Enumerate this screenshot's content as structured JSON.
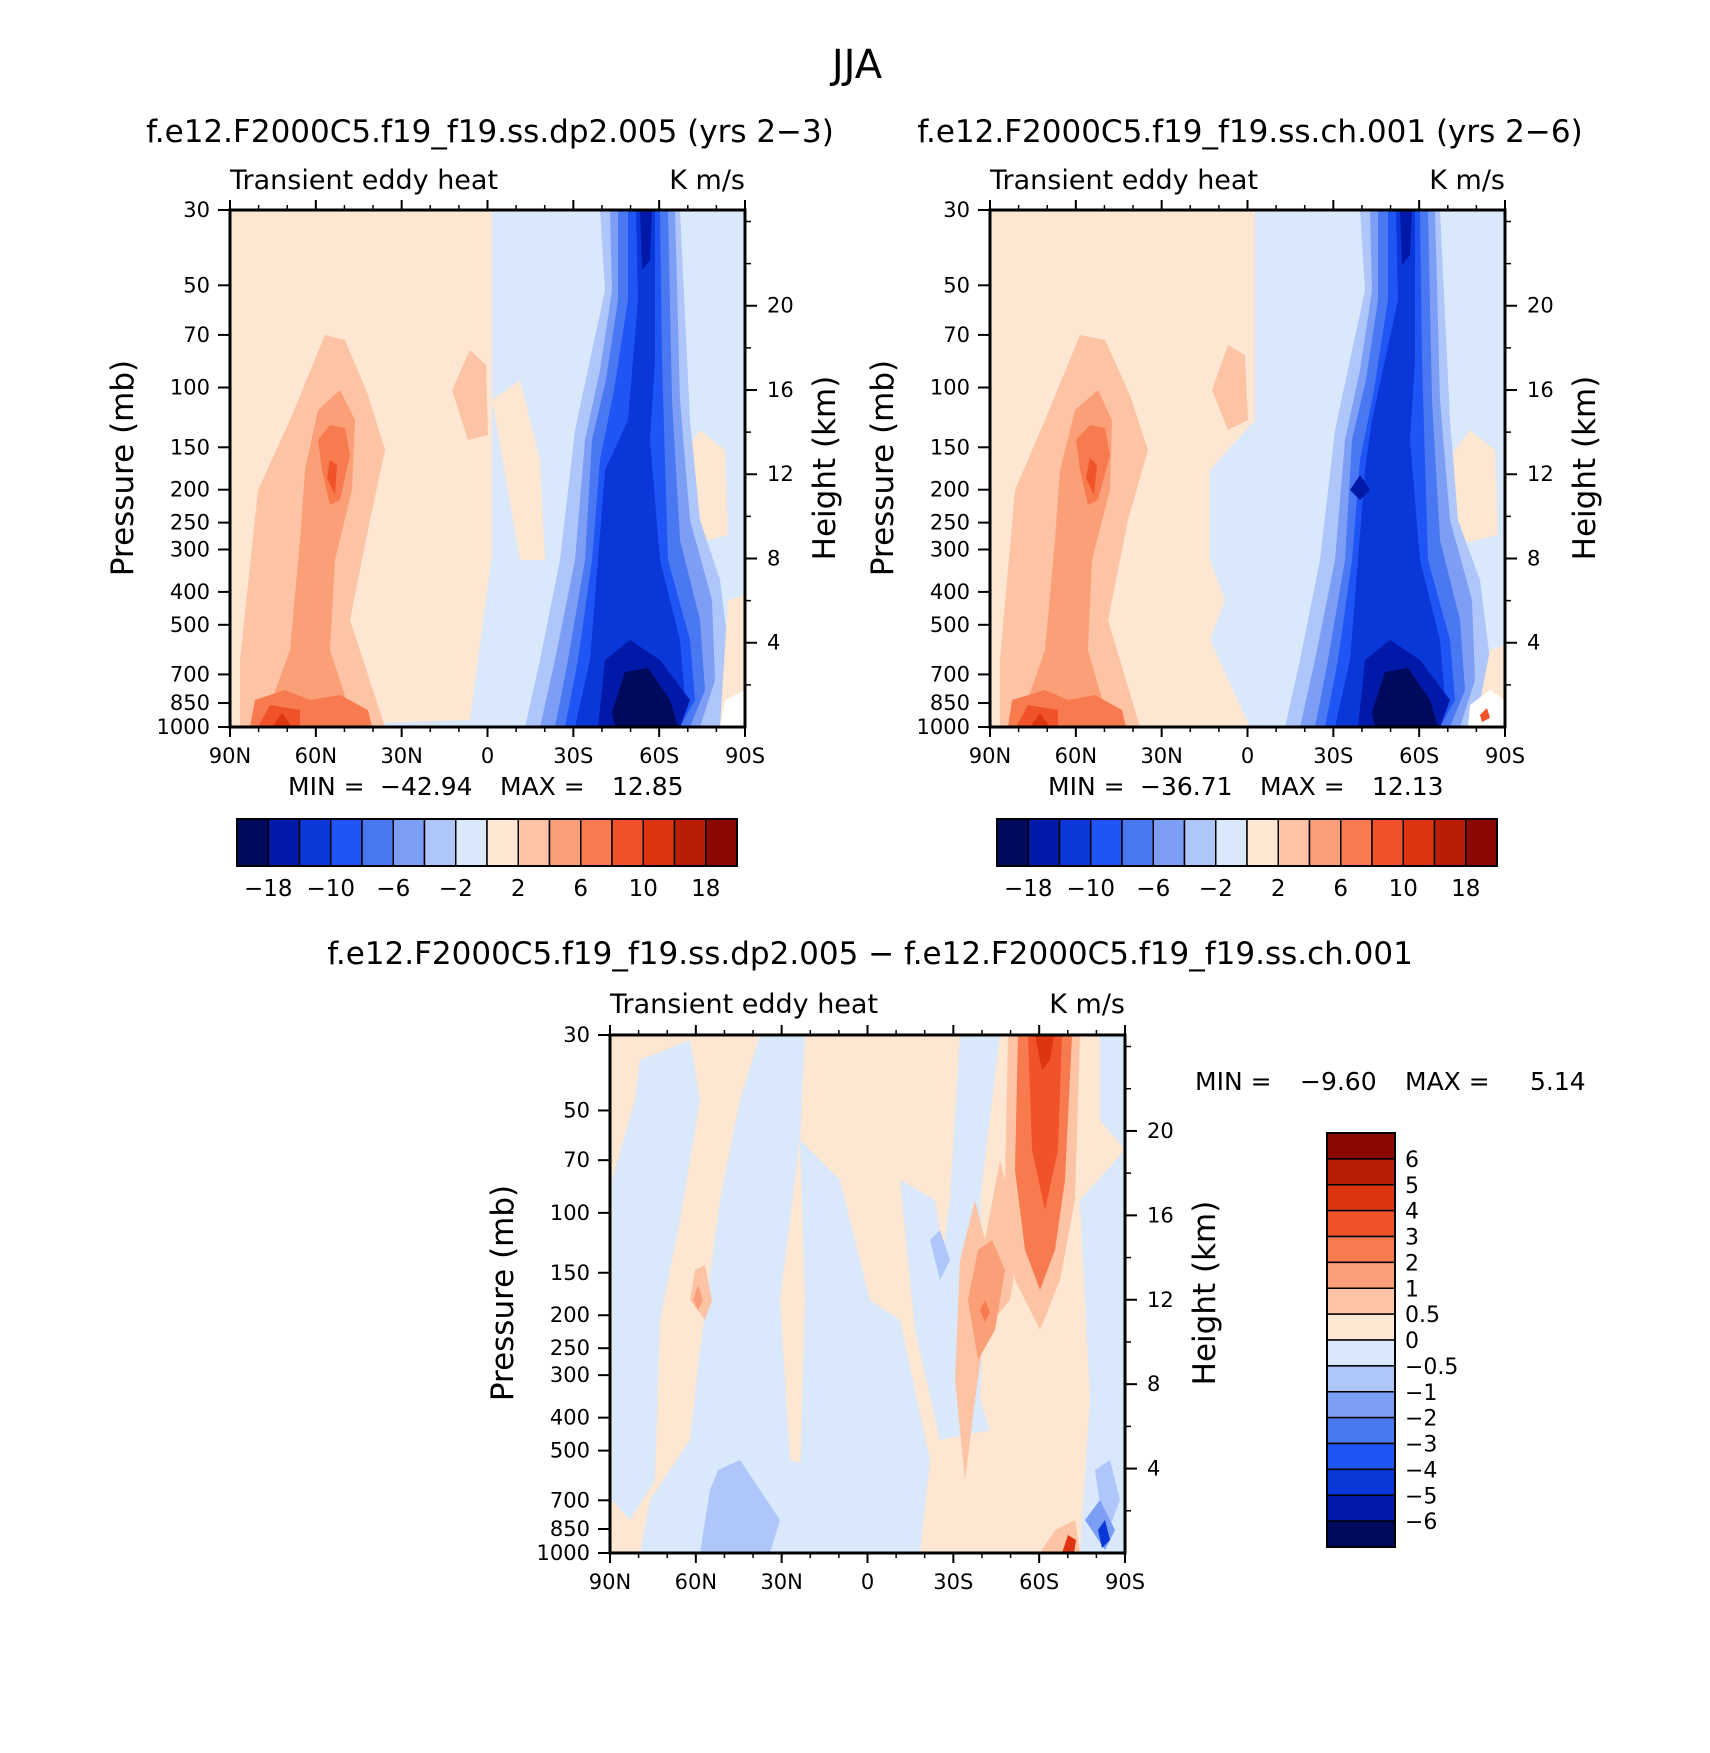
{
  "title": "JJA",
  "chart_data": [
    {
      "type": "heatmap",
      "id": "p1",
      "title": "f.e12.F2000C5.f19_f19.ss.dp2.005 (yrs 2−3)",
      "variable": "Transient eddy heat",
      "units": "K m/s",
      "ylabel": "Pressure (mb)",
      "y2label": "Height (km)",
      "x_ticks": [
        "90N",
        "60N",
        "30N",
        "0",
        "30S",
        "60S",
        "90S"
      ],
      "y_ticks": [
        "30",
        "50",
        "70",
        "100",
        "150",
        "200",
        "250",
        "300",
        "400",
        "500",
        "700",
        "850",
        "1000"
      ],
      "y2_ticks": [
        "20",
        "16",
        "12",
        "8",
        "4"
      ],
      "ylim": [
        1000,
        30
      ],
      "min_label": "MIN =",
      "min_value": "−42.94",
      "max_label": "MAX =",
      "max_value": "12.85",
      "colorbar": {
        "orientation": "horizontal",
        "labels": [
          "−18",
          "−10",
          "−6",
          "−2",
          "2",
          "6",
          "10",
          "18"
        ],
        "colors": [
          "#000a5c",
          "#0019a8",
          "#0a37d8",
          "#1f55f5",
          "#4a78f2",
          "#7d9ef5",
          "#afc6fb",
          "#d9e9fb",
          "#fde6d2",
          "#fcc4a4",
          "#fa9f78",
          "#f87a4f",
          "#f0522a",
          "#dc3510",
          "#b81d05",
          "#8a0800"
        ]
      },
      "features": [
        {
          "lat": 57,
          "p": 200,
          "value": 8
        },
        {
          "lat": 70,
          "p": 970,
          "value": 10
        },
        {
          "lat": 58,
          "p": 900,
          "value": 6
        },
        {
          "lat": -45,
          "p": 180,
          "value": -18
        },
        {
          "lat": -55,
          "p": 900,
          "value": -42.94
        },
        {
          "lat": -60,
          "p": 40,
          "value": -14
        }
      ]
    },
    {
      "type": "heatmap",
      "id": "p2",
      "title": "f.e12.F2000C5.f19_f19.ss.ch.001 (yrs 2−6)",
      "variable": "Transient eddy heat",
      "units": "K m/s",
      "ylabel": "Pressure (mb)",
      "y2label": "Height (km)",
      "x_ticks": [
        "90N",
        "60N",
        "30N",
        "0",
        "30S",
        "60S",
        "90S"
      ],
      "y_ticks": [
        "30",
        "50",
        "70",
        "100",
        "150",
        "200",
        "250",
        "300",
        "400",
        "500",
        "700",
        "850",
        "1000"
      ],
      "y2_ticks": [
        "20",
        "16",
        "12",
        "8",
        "4"
      ],
      "ylim": [
        1000,
        30
      ],
      "min_label": "MIN =",
      "min_value": "−36.71",
      "max_label": "MAX =",
      "max_value": "12.13",
      "colorbar": {
        "orientation": "horizontal",
        "labels": [
          "−18",
          "−10",
          "−6",
          "−2",
          "2",
          "6",
          "10",
          "18"
        ],
        "colors": [
          "#000a5c",
          "#0019a8",
          "#0a37d8",
          "#1f55f5",
          "#4a78f2",
          "#7d9ef5",
          "#afc6fb",
          "#d9e9fb",
          "#fde6d2",
          "#fcc4a4",
          "#fa9f78",
          "#f87a4f",
          "#f0522a",
          "#dc3510",
          "#b81d05",
          "#8a0800"
        ]
      },
      "features": [
        {
          "lat": 57,
          "p": 200,
          "value": 8
        },
        {
          "lat": 70,
          "p": 970,
          "value": 10
        },
        {
          "lat": -40,
          "p": 200,
          "value": -18
        },
        {
          "lat": -55,
          "p": 900,
          "value": -36.71
        },
        {
          "lat": -60,
          "p": 40,
          "value": -14
        }
      ]
    },
    {
      "type": "heatmap",
      "id": "p3",
      "title": "f.e12.F2000C5.f19_f19.ss.dp2.005 − f.e12.F2000C5.f19_f19.ss.ch.001",
      "variable": "Transient eddy heat",
      "units": "K m/s",
      "ylabel": "Pressure (mb)",
      "y2label": "Height (km)",
      "x_ticks": [
        "90N",
        "60N",
        "30N",
        "0",
        "30S",
        "60S",
        "90S"
      ],
      "y_ticks": [
        "30",
        "50",
        "70",
        "100",
        "150",
        "200",
        "250",
        "300",
        "400",
        "500",
        "700",
        "850",
        "1000"
      ],
      "y2_ticks": [
        "20",
        "16",
        "12",
        "8",
        "4"
      ],
      "ylim": [
        1000,
        30
      ],
      "min_label": "MIN =",
      "min_value": "−9.60",
      "max_label": "MAX =",
      "max_value": "5.14",
      "colorbar": {
        "orientation": "vertical",
        "labels": [
          "6",
          "5",
          "4",
          "3",
          "2",
          "1",
          "0.5",
          "0",
          "−0.5",
          "−1",
          "−2",
          "−3",
          "−4",
          "−5",
          "−6"
        ],
        "colors": [
          "#8a0800",
          "#b81d05",
          "#dc3510",
          "#f0522a",
          "#f87a4f",
          "#fa9f78",
          "#fcc4a4",
          "#fde6d2",
          "#d9e9fb",
          "#afc6fb",
          "#7d9ef5",
          "#4a78f2",
          "#1f55f5",
          "#0a37d8",
          "#0019a8",
          "#000a5c"
        ]
      },
      "features": [
        {
          "lat": -62,
          "p": 45,
          "value": 4
        },
        {
          "lat": -63,
          "p": 150,
          "value": 3
        },
        {
          "lat": -38,
          "p": 200,
          "value": 3
        },
        {
          "lat": 58,
          "p": 200,
          "value": 1
        },
        {
          "lat": -70,
          "p": 980,
          "value": 5.14
        },
        {
          "lat": -80,
          "p": 950,
          "value": -9.6
        }
      ]
    }
  ]
}
